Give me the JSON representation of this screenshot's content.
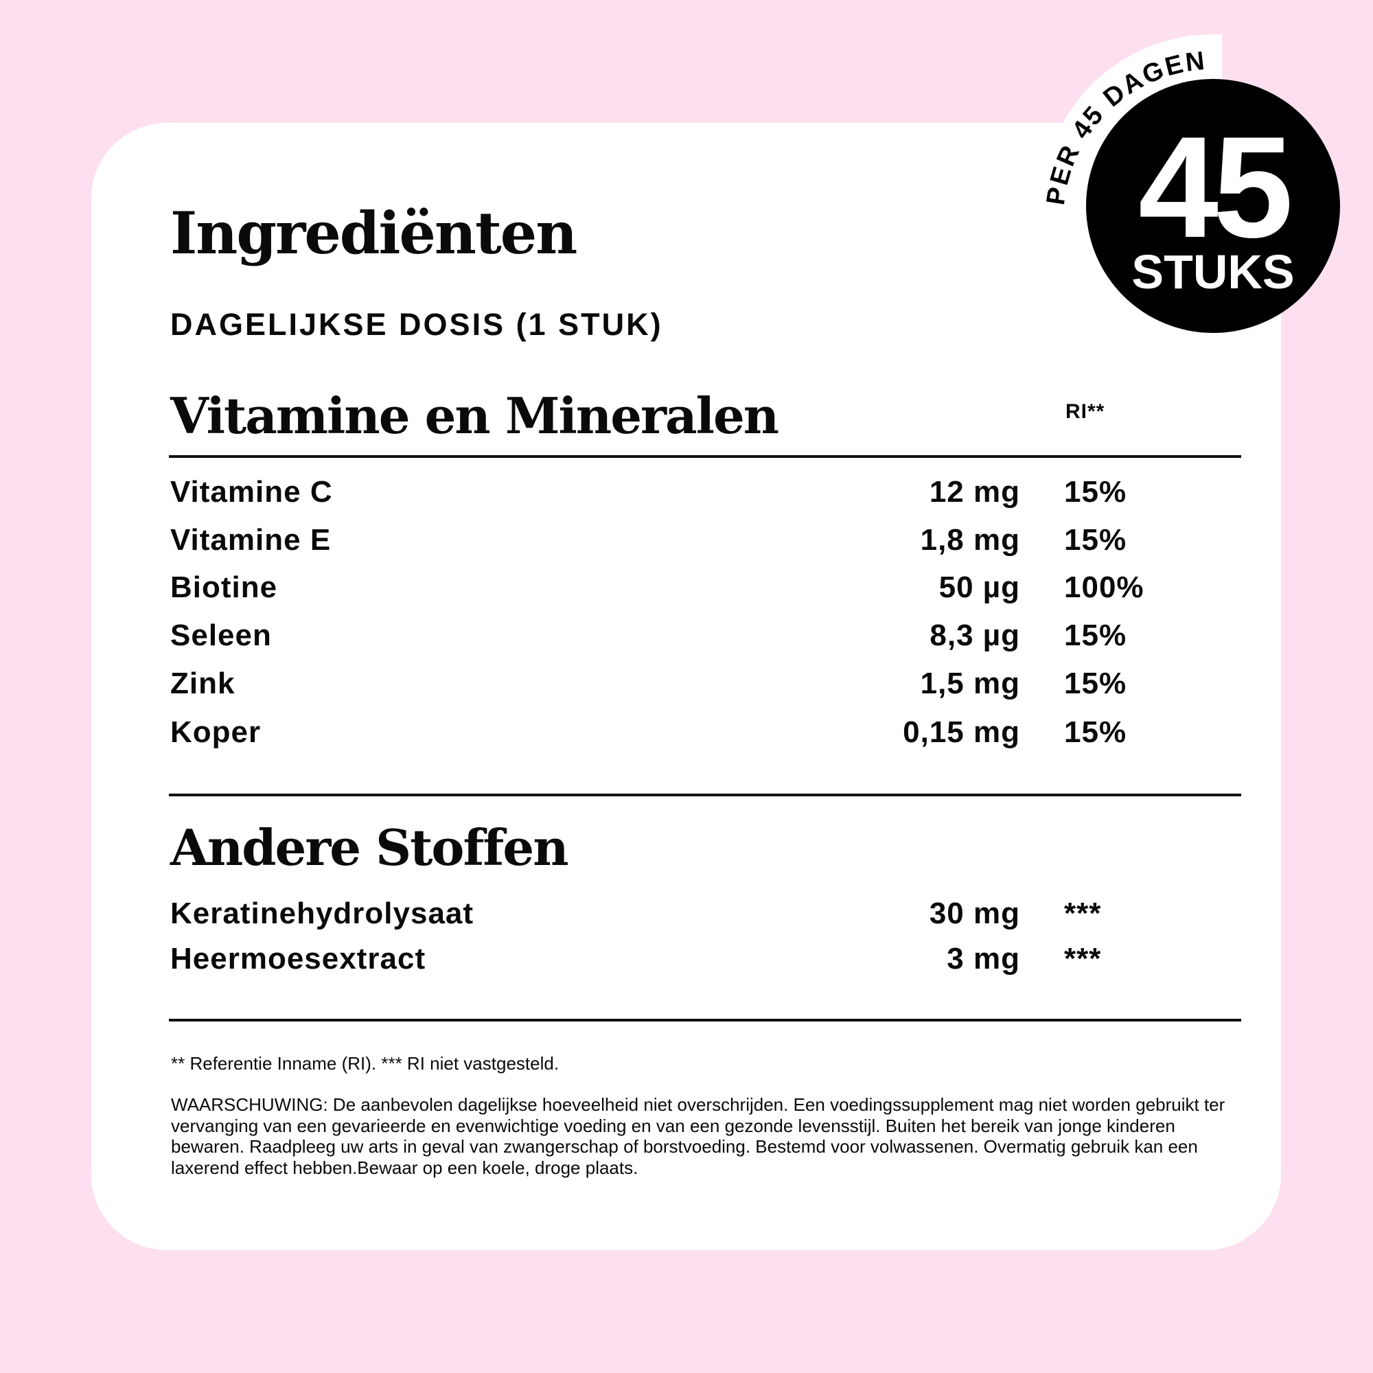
{
  "title": "Ingrediënten",
  "subtitle": "DAGELIJKSE DOSIS (1 STUK)",
  "badge": {
    "arc_text": "PER 45 DAGEN",
    "number": "45",
    "unit": "STUKS"
  },
  "vitamins": {
    "heading": "Vitamine en Mineralen",
    "ri_header": "RI**",
    "rows": [
      {
        "name": "Vitamine C",
        "amount": "12 mg",
        "ri": "15%"
      },
      {
        "name": "Vitamine E",
        "amount": "1,8 mg",
        "ri": "15%"
      },
      {
        "name": "Biotine",
        "amount": "50 µg",
        "ri": "100%"
      },
      {
        "name": "Seleen",
        "amount": "8,3 µg",
        "ri": "15%"
      },
      {
        "name": "Zink",
        "amount": "1,5 mg",
        "ri": "15%"
      },
      {
        "name": "Koper",
        "amount": "0,15 mg",
        "ri": "15%"
      }
    ]
  },
  "others": {
    "heading": "Andere Stoffen",
    "rows": [
      {
        "name": "Keratinehydrolysaat",
        "amount": "30 mg",
        "ri": "***"
      },
      {
        "name": "Heermoesextract",
        "amount": "3 mg",
        "ri": "***"
      }
    ]
  },
  "footnote": "** Referentie Inname (RI). *** RI niet vastgesteld.",
  "warning": "WAARSCHUWING: De aanbevolen dagelijkse hoeveelheid niet overschrijden. Een voedingssupplement mag niet worden gebruikt ter vervanging van een gevarieerde en evenwichtige voeding en van een gezonde levensstijl. Buiten het bereik van jonge kinderen bewaren. Raadpleeg uw arts in geval van zwangerschap of borstvoeding. Bestemd voor volwassenen. Overmatig gebruik kan een laxerend effect hebben.Bewaar op een koele, droge plaats.",
  "colors": {
    "background": "#fde0ef",
    "card": "#ffffff",
    "badge": "#000000"
  }
}
